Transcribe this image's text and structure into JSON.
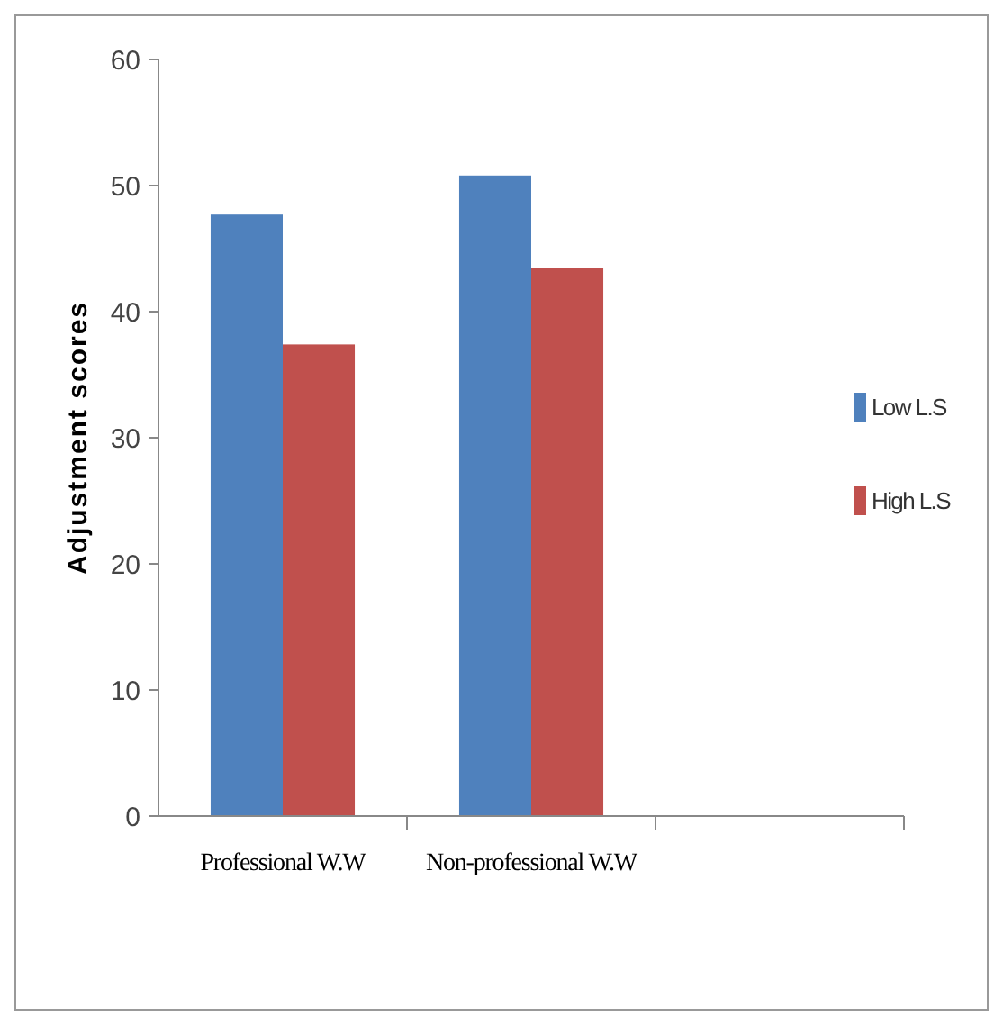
{
  "chart_data": {
    "type": "bar",
    "ylabel": "Adjustment scores",
    "categories": [
      "Professional W.W",
      "Non-professional W.W",
      null
    ],
    "series": [
      {
        "name": "Low L.S",
        "color": "#4f81bd",
        "values": [
          47.7,
          50.8,
          null
        ]
      },
      {
        "name": "High L.S",
        "color": "#c0504d",
        "values": [
          37.4,
          43.5,
          null
        ]
      }
    ],
    "ylim": [
      0,
      60
    ],
    "yticks": [
      0,
      10,
      20,
      30,
      40,
      50,
      60
    ],
    "grid": false,
    "legend": "right"
  }
}
